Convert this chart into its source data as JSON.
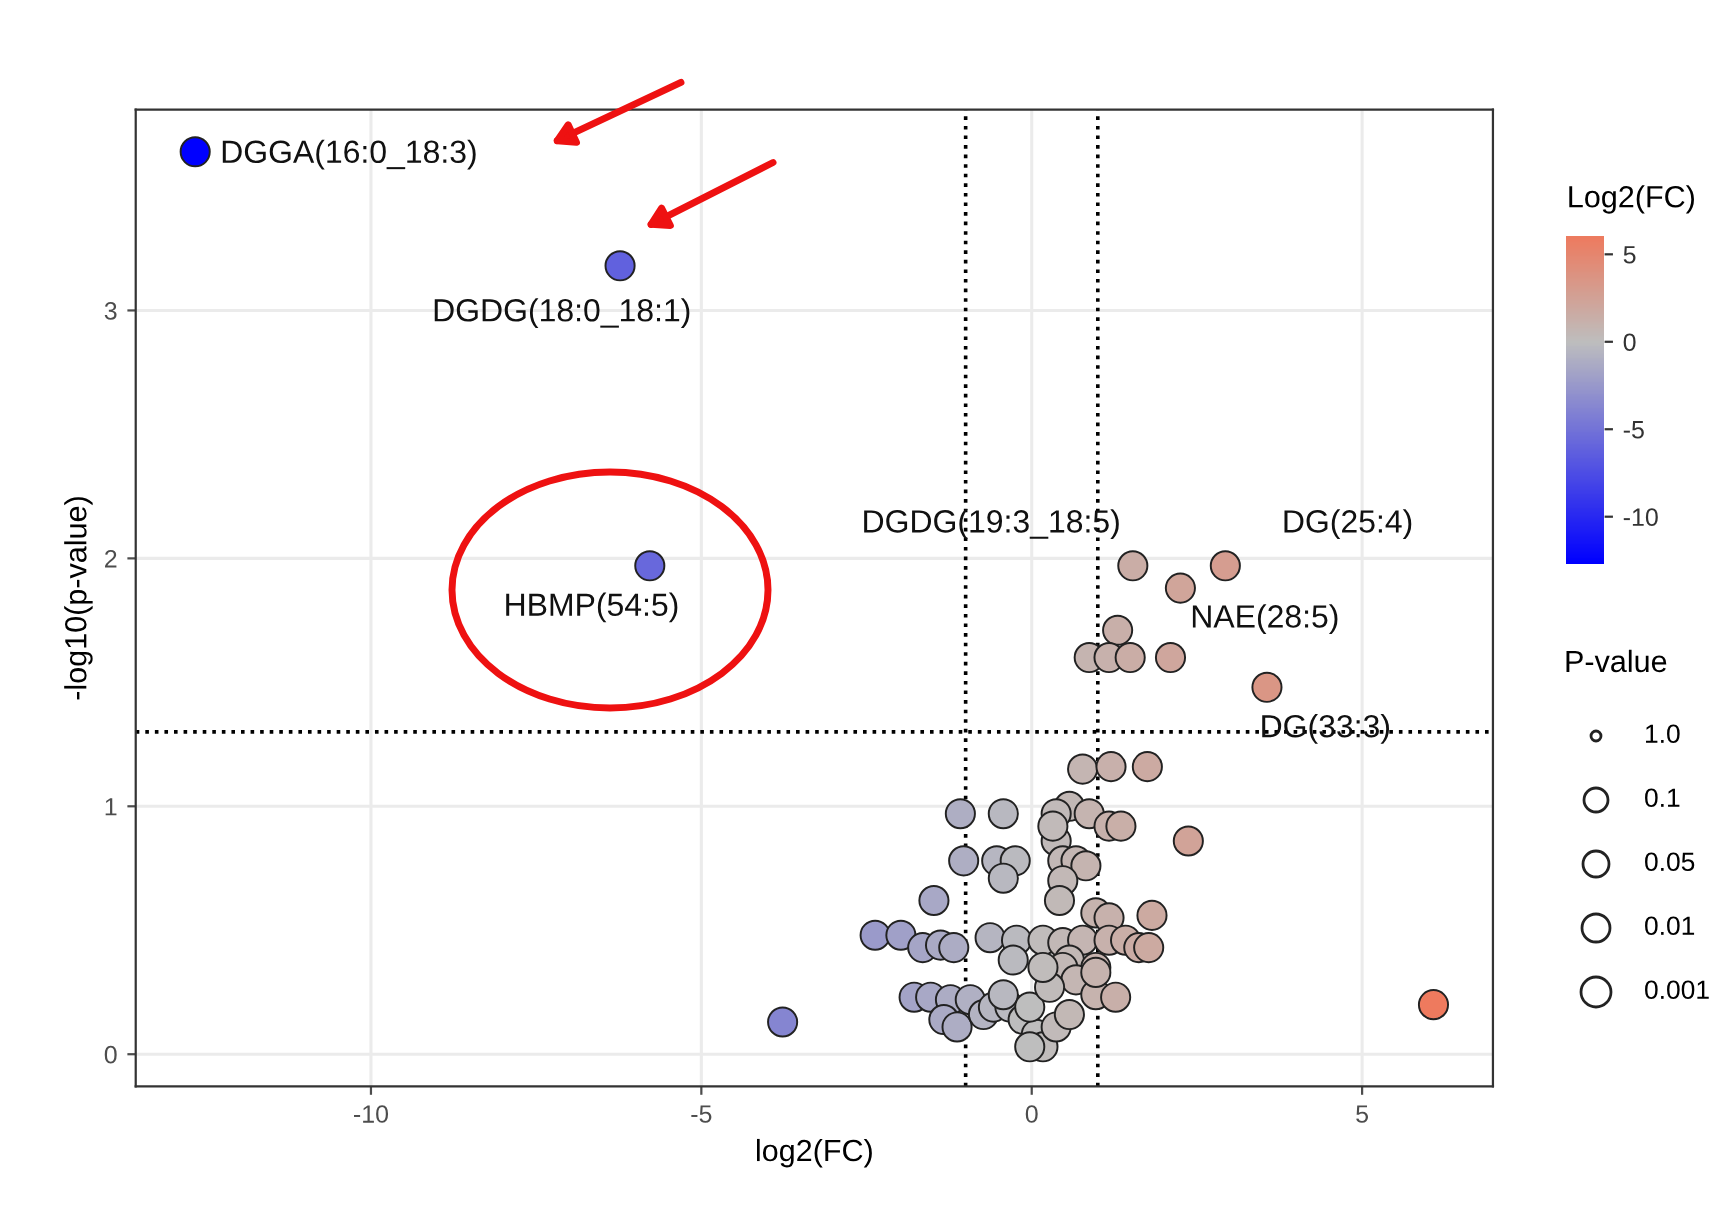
{
  "chart_data": {
    "type": "scatter",
    "xlabel": "log2(FC)",
    "ylabel": "-log10(p-value)",
    "clabel": "Log2(FC)",
    "legend_title": "P-value",
    "xlim": [
      -13.56,
      6.98
    ],
    "ylim": [
      -0.13,
      3.81
    ],
    "xticks": [
      -10,
      -5,
      0,
      5
    ],
    "yticks": [
      0,
      1,
      2,
      3
    ],
    "clim": [
      -12.7,
      6.1
    ],
    "cticks": [
      -10,
      -5,
      0,
      5
    ],
    "grid": true,
    "ref_lines": [
      {
        "axis": "x",
        "value": -1,
        "line_style": "dotted",
        "color": "#000000"
      },
      {
        "axis": "x",
        "value": 1,
        "line_style": "dotted",
        "color": "#000000"
      },
      {
        "axis": "y",
        "value": 1.3,
        "line_style": "dotted",
        "color": "#000000"
      }
    ],
    "annotations": [
      {
        "text": "DGGA(16:0_18:3)",
        "x": -12.66,
        "y": 3.64
      },
      {
        "text": "DGDG(18:0_18:1)",
        "x": -6.23,
        "y": 3.18
      },
      {
        "text": "HBMP(54:5)",
        "x": -5.78,
        "y": 1.97
      },
      {
        "text": "DGDG(19:3_18:5)",
        "x": 1.53,
        "y": 1.97
      },
      {
        "text": "DG(25:4)",
        "x": 2.93,
        "y": 1.97
      },
      {
        "text": "NAE(28:5)",
        "x": 1.3,
        "y": 1.71
      },
      {
        "text": "DG(33:3)",
        "x": 3.56,
        "y": 1.48
      },
      "1.0",
      "0.1",
      "0.05",
      "0.01",
      "0.001"
    ],
    "series": [
      {
        "x": [
          -12.66,
          -6.23,
          -5.78,
          1.53,
          2.93,
          2.25,
          1.3,
          0.87,
          1.17,
          1.49,
          2.1,
          3.56,
          0.77,
          1.2,
          1.75,
          0.57,
          0.87,
          1.17,
          1.35,
          -1.08,
          -0.43,
          -1.03,
          -0.53,
          -0.25,
          -0.43,
          0.37,
          0.47,
          0.67,
          0.82,
          0.47,
          2.37,
          -1.48,
          0.42,
          0.97,
          1.17,
          1.82,
          -2.37,
          -1.98,
          -1.65,
          -1.38,
          -1.18,
          -0.63,
          -0.23,
          -0.28,
          0.17,
          0.47,
          0.77,
          1.17,
          1.42,
          1.62,
          1.77,
          0.57,
          0.97,
          -1.78,
          -1.53,
          -1.23,
          -0.93,
          -1.33,
          -1.13,
          -0.73,
          -0.58,
          -0.33,
          -0.13,
          0.07,
          0.17,
          -0.03,
          0.37,
          0.57,
          0.47,
          0.67,
          0.97,
          1.27,
          -0.43,
          -0.03,
          0.27,
          0.17,
          -3.77,
          6.08,
          0.97,
          0.37,
          0.32
        ],
        "values": [
          3.64,
          3.18,
          1.97,
          1.97,
          1.97,
          1.88,
          1.71,
          1.6,
          1.6,
          1.6,
          1.6,
          1.48,
          1.15,
          1.16,
          1.16,
          1.0,
          0.97,
          0.92,
          0.92,
          0.97,
          0.97,
          0.78,
          0.78,
          0.78,
          0.71,
          0.86,
          0.78,
          0.78,
          0.76,
          0.7,
          0.86,
          0.62,
          0.62,
          0.57,
          0.55,
          0.56,
          0.48,
          0.48,
          0.43,
          0.44,
          0.43,
          0.47,
          0.46,
          0.38,
          0.46,
          0.45,
          0.46,
          0.46,
          0.46,
          0.43,
          0.43,
          0.38,
          0.35,
          0.23,
          0.23,
          0.22,
          0.22,
          0.14,
          0.11,
          0.16,
          0.19,
          0.19,
          0.14,
          0.08,
          0.03,
          0.03,
          0.11,
          0.16,
          0.35,
          0.3,
          0.24,
          0.23,
          0.24,
          0.19,
          0.27,
          0.35,
          0.13,
          0.2,
          0.33,
          0.97,
          0.92
        ],
        "cvalues": [
          -12.66,
          -6.23,
          -5.78,
          1.53,
          2.93,
          2.25,
          1.3,
          0.87,
          1.17,
          1.49,
          2.1,
          3.56,
          0.77,
          1.2,
          1.75,
          0.57,
          0.87,
          1.17,
          1.35,
          -1.08,
          -0.43,
          -1.03,
          -0.53,
          -0.25,
          -0.43,
          0.37,
          0.47,
          0.67,
          0.82,
          0.47,
          2.37,
          -1.48,
          0.42,
          0.97,
          1.17,
          1.82,
          -2.37,
          -1.98,
          -1.65,
          -1.38,
          -1.18,
          -0.63,
          -0.23,
          -0.28,
          0.17,
          0.47,
          0.77,
          1.17,
          1.42,
          1.62,
          1.77,
          0.57,
          0.97,
          -1.78,
          -1.53,
          -1.23,
          -0.93,
          -1.33,
          -1.13,
          -0.73,
          -0.58,
          -0.33,
          -0.13,
          0.07,
          0.17,
          -0.03,
          0.37,
          0.57,
          0.47,
          0.67,
          0.97,
          1.27,
          -0.43,
          -0.03,
          0.27,
          0.17,
          -3.77,
          6.08,
          0.97,
          0.37,
          0.32
        ],
        "marker": "circle"
      }
    ]
  }
}
